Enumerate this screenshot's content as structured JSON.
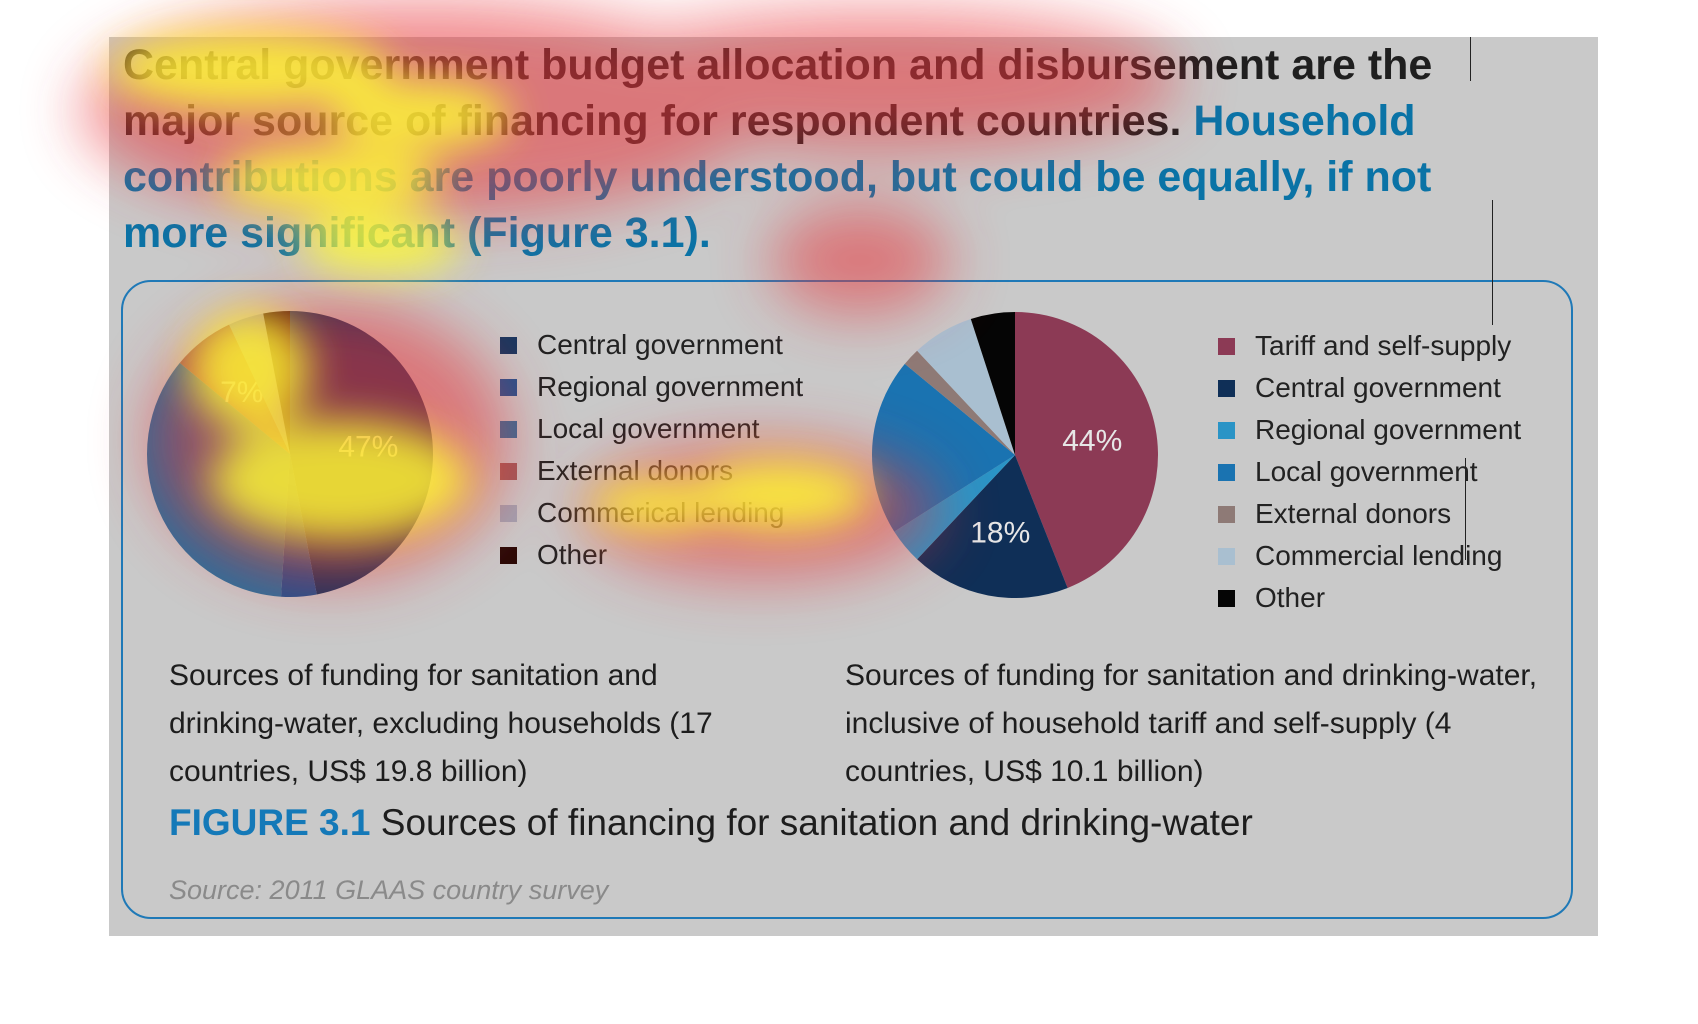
{
  "headline": {
    "part_a": "Central government budget allocation and disbursement are the major source of financing for respondent countries.",
    "part_b": " Household contributions are poorly understood, but could be equally, if not more significant (Figure 3.1)."
  },
  "chart_data": [
    {
      "type": "pie",
      "caption": "Sources of funding for sanitation and drinking-water, excluding households (17 countries, US$ 19.8 billion)",
      "legend": [
        "Central government",
        "Regional government",
        "Local government",
        "External donors",
        "Commerical lending",
        "Other"
      ],
      "values": [
        47,
        4,
        35,
        7,
        4,
        3
      ],
      "data_labels": [
        "47%",
        "",
        "",
        "7%",
        "",
        ""
      ],
      "colors": [
        "#16365f",
        "#1d528f",
        "#2a6f9c",
        "#9a5a5a",
        "#9fa3b2",
        "#2a0a06"
      ]
    },
    {
      "type": "pie",
      "caption": "Sources of funding for sanitation and drinking-water, inclusive of household tariff and self-supply (4 countries, US$ 10.1 billion)",
      "legend": [
        "Tariff and self-supply",
        "Central government",
        "Regional government",
        "Local government",
        "External donors",
        "Commercial lending",
        "Other"
      ],
      "values": [
        44,
        18,
        4,
        20,
        2,
        7,
        5
      ],
      "data_labels": [
        "44%",
        "18%",
        "",
        "",
        "",
        "",
        ""
      ],
      "colors": [
        "#8c3a55",
        "#0f2f57",
        "#2a94c6",
        "#1a73b1",
        "#8e7a76",
        "#a9bfd0",
        "#050505"
      ]
    }
  ],
  "figure": {
    "number": "FIGURE 3.1",
    "title": " Sources of financing for sanitation and drinking-water"
  },
  "source": "Source: 2011 GLAAS country survey"
}
